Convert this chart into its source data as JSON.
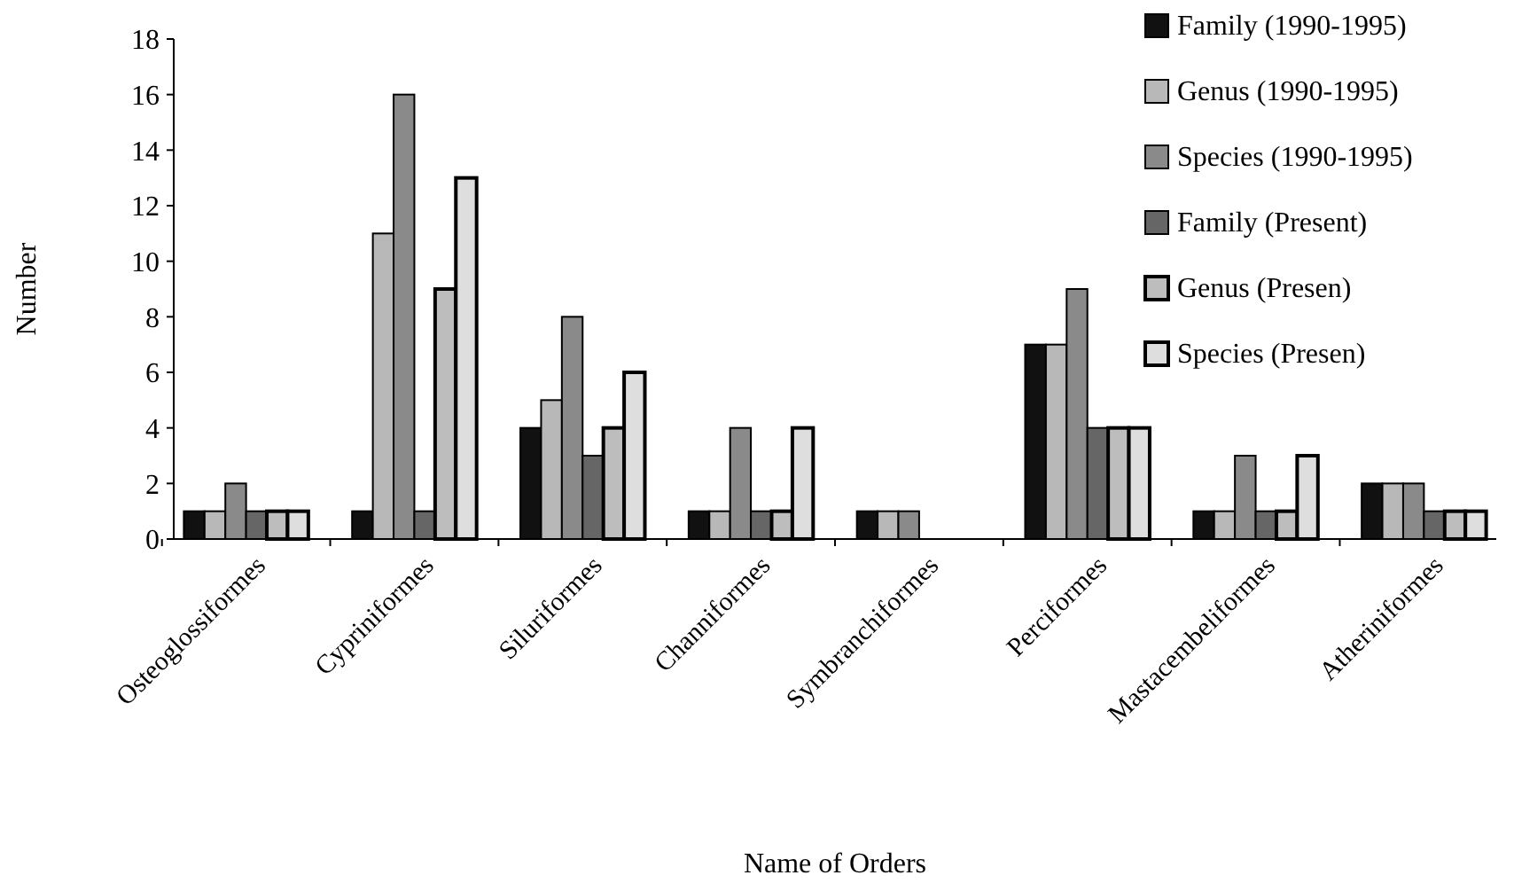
{
  "chart_data": {
    "type": "bar",
    "xlabel": "Name of Orders",
    "ylabel": "Number",
    "categories": [
      "Osteoglossiformes",
      "Cypriniformes",
      "Siluriformes",
      "Channiformes",
      "Symbranchiformes",
      "Perciformes",
      "Mastacembeliformes",
      "Atheriniformes"
    ],
    "series": [
      {
        "name": "Family (1990-1995)",
        "color": "#111111",
        "values": [
          1,
          1,
          4,
          1,
          1,
          7,
          1,
          2
        ]
      },
      {
        "name": "Genus (1990-1995)",
        "color": "#b8b8b8",
        "values": [
          1,
          11,
          5,
          1,
          1,
          7,
          1,
          2
        ]
      },
      {
        "name": "Species (1990-1995)",
        "color": "#8a8a8a",
        "values": [
          2,
          16,
          8,
          4,
          1,
          9,
          3,
          2
        ]
      },
      {
        "name": "Family (Present)",
        "color": "#666666",
        "values": [
          1,
          1,
          3,
          1,
          null,
          4,
          1,
          1
        ]
      },
      {
        "name": "Genus (Presen)",
        "color": "#bdbdbd",
        "values": [
          1,
          9,
          4,
          1,
          null,
          4,
          1,
          1
        ]
      },
      {
        "name": "Species (Presen)",
        "color": "#dedede",
        "values": [
          1,
          13,
          6,
          4,
          null,
          4,
          3,
          1
        ]
      }
    ],
    "ylim": [
      0,
      18
    ],
    "yticks": [
      0,
      2,
      4,
      6,
      8,
      10,
      12,
      14,
      16,
      18
    ],
    "legend": "top right"
  }
}
